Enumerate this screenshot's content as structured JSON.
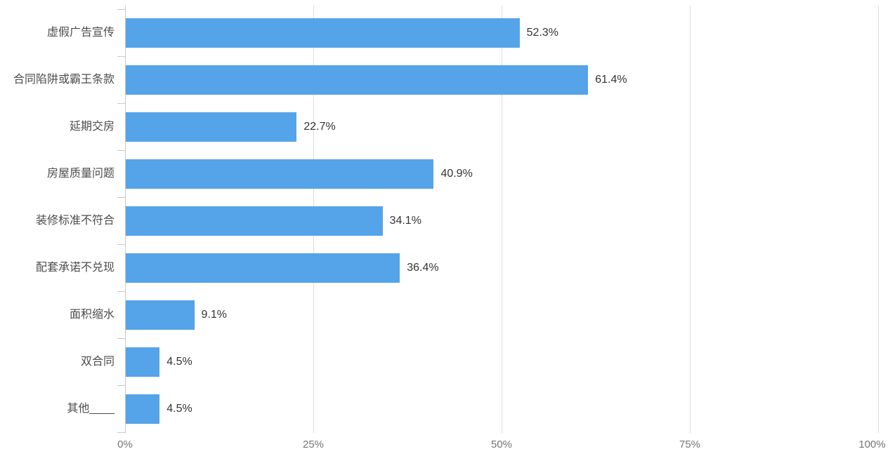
{
  "chart_data": {
    "type": "bar",
    "orientation": "horizontal",
    "title": "",
    "categories": [
      "虚假广告宣传",
      "合同陷阱或霸王条款",
      "延期交房",
      "房屋质量问题",
      "装修标准不符合",
      "配套承诺不兑现",
      "面积缩水",
      "双合同",
      "其他____"
    ],
    "values": [
      52.3,
      61.4,
      22.7,
      40.9,
      34.1,
      36.4,
      9.1,
      4.5,
      4.5
    ],
    "value_labels": [
      "52.3%",
      "61.4%",
      "22.7%",
      "40.9%",
      "34.1%",
      "36.4%",
      "9.1%",
      "4.5%",
      "4.5%"
    ],
    "x_ticks": [
      0,
      25,
      50,
      75,
      100
    ],
    "x_tick_labels": [
      "0%",
      "25%",
      "50%",
      "75%",
      "100%"
    ],
    "xlim": [
      0,
      100
    ],
    "grid": true,
    "legend": false
  },
  "colors": {
    "bar": "#55a3e8",
    "gridline": "#dcdcdc",
    "axis": "#c9c9c9",
    "category_label": "#4d4d4d",
    "value_label": "#333333",
    "tick_label": "#757575",
    "background": "#ffffff"
  }
}
